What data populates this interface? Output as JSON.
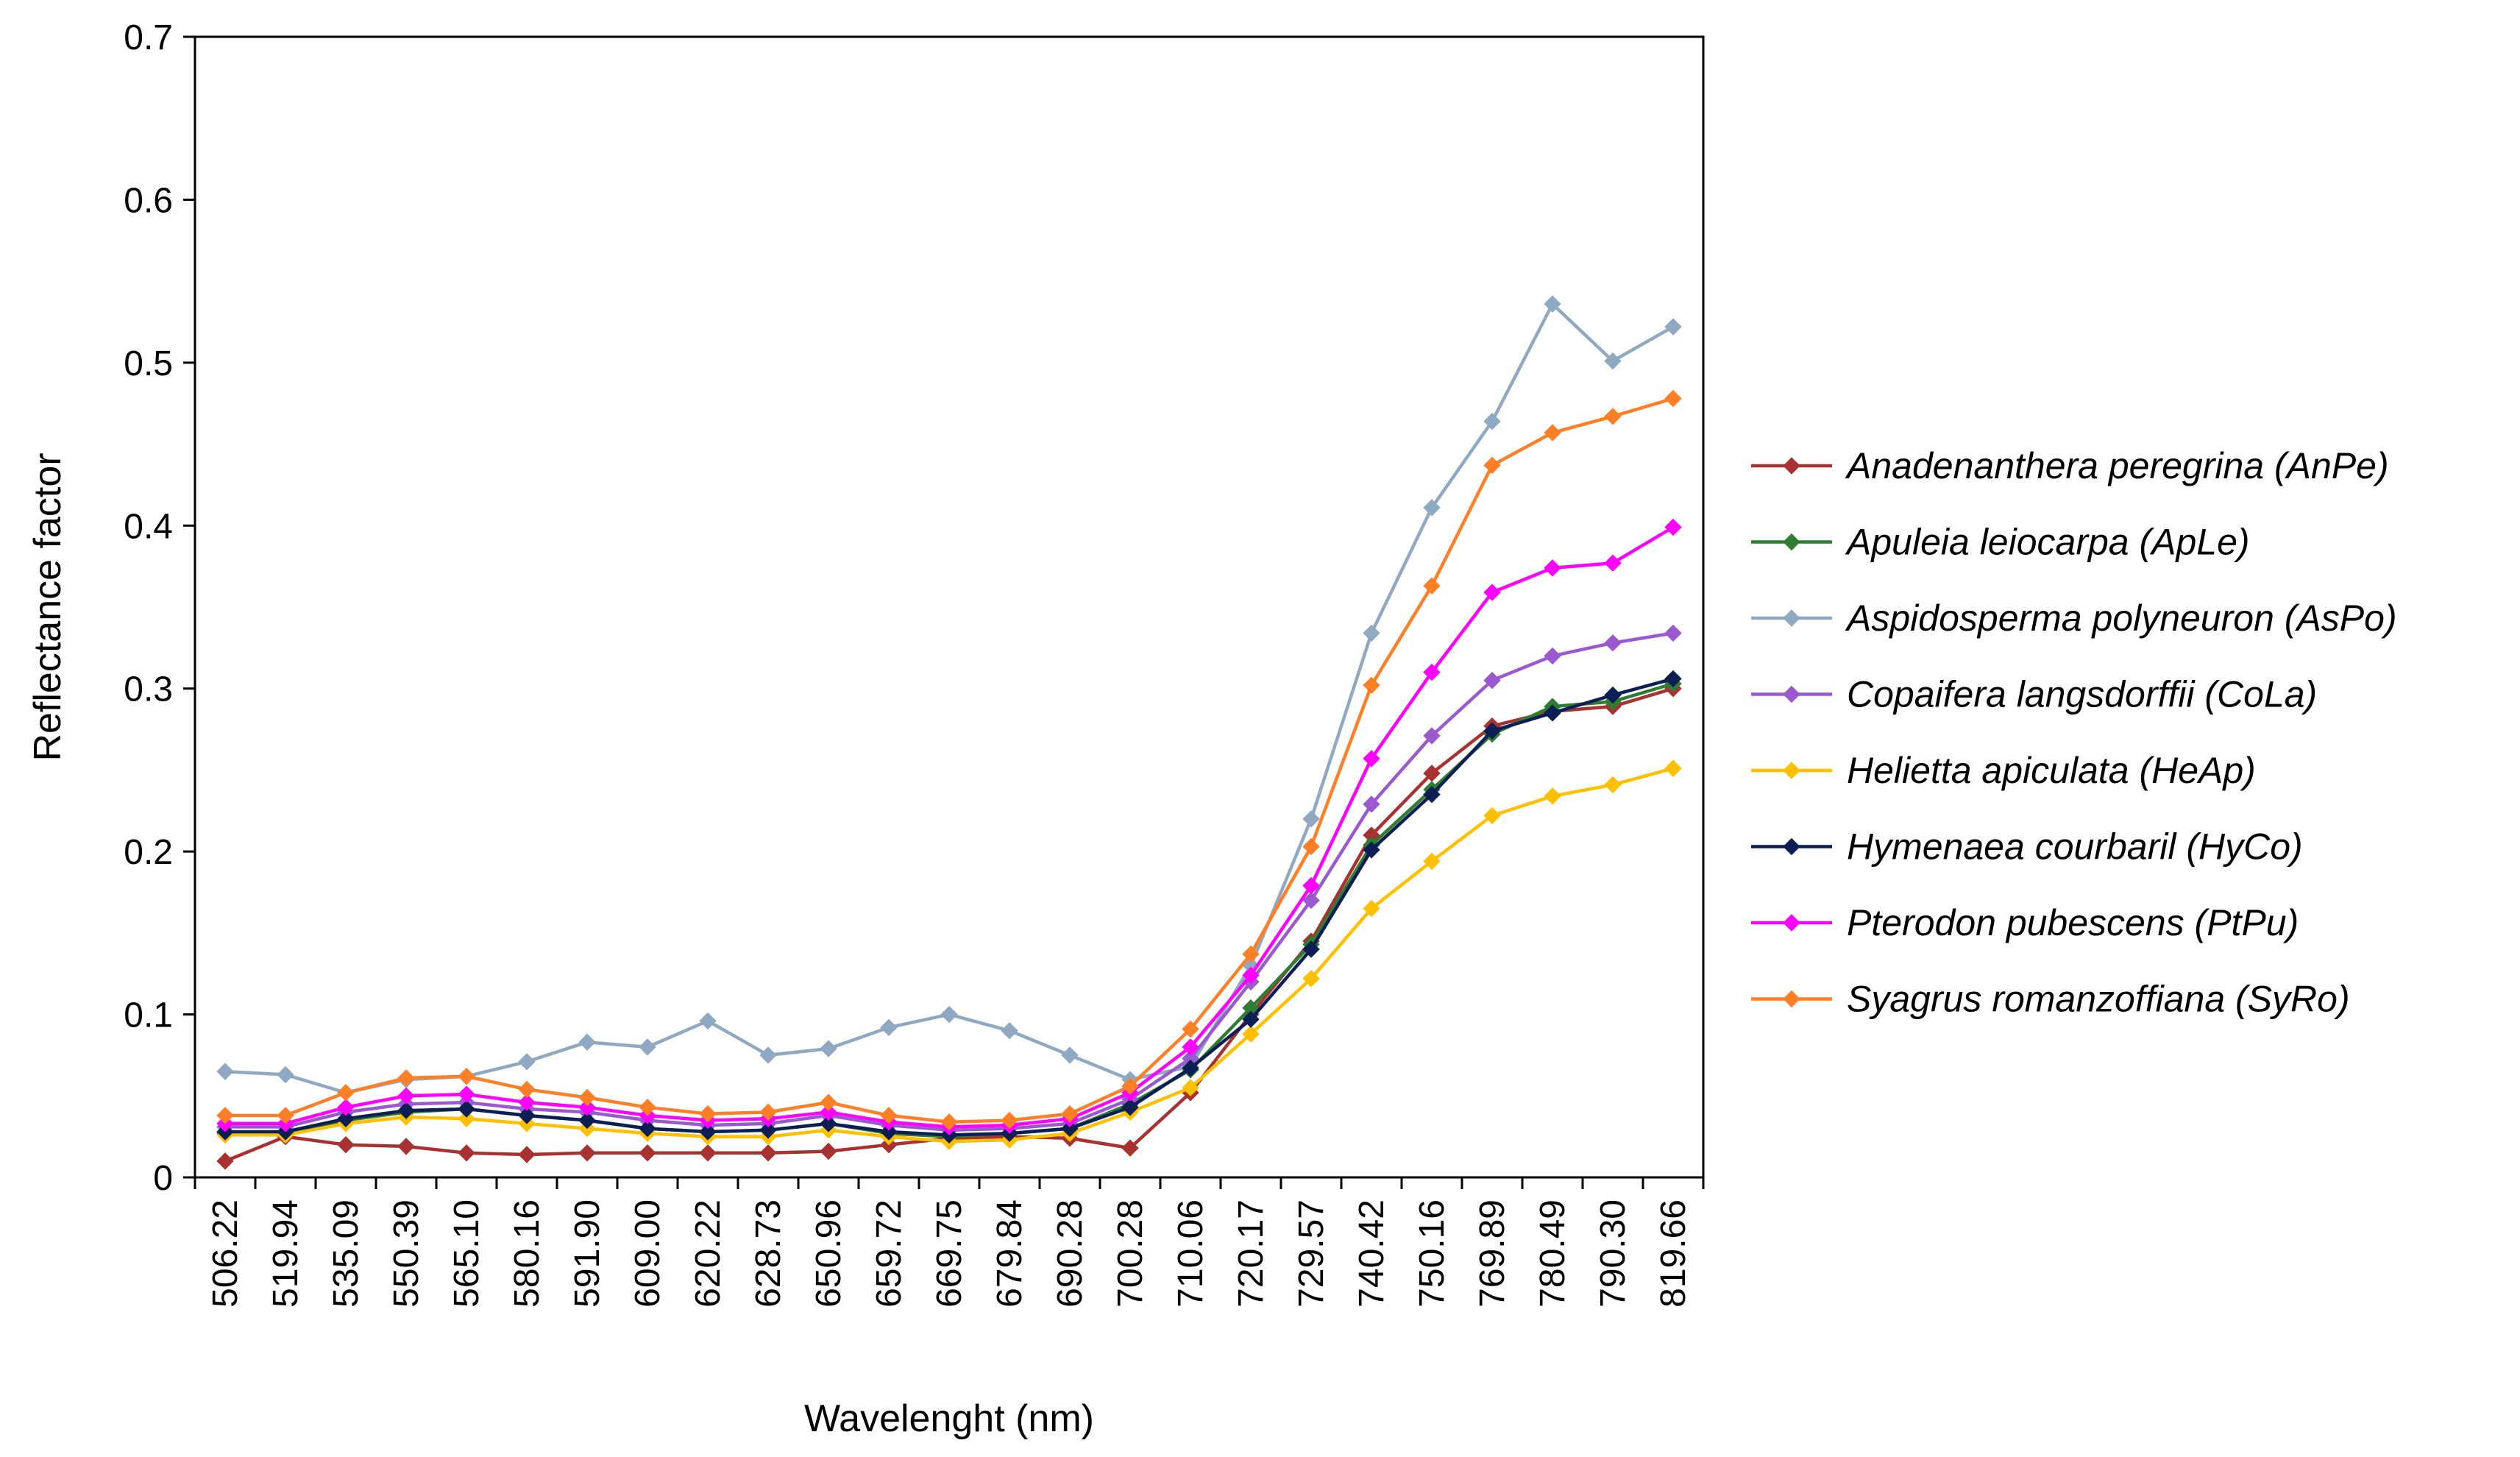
{
  "chart_data": {
    "type": "line",
    "title": "",
    "xlabel": "Wavelenght (nm)",
    "ylabel": "Reflectance factor",
    "ylim": [
      0,
      0.7
    ],
    "yticks": [
      0,
      0.1,
      0.2,
      0.3,
      0.4,
      0.5,
      0.6,
      0.7
    ],
    "ytick_labels": [
      "0",
      "0.1",
      "0.2",
      "0.3",
      "0.4",
      "0.5",
      "0.6",
      "0.7"
    ],
    "grid": false,
    "legend_position": "right",
    "categories": [
      "506.22",
      "519.94",
      "535.09",
      "550.39",
      "565.10",
      "580.16",
      "591.90",
      "609.00",
      "620.22",
      "628.73",
      "650.96",
      "659.72",
      "669.75",
      "679.84",
      "690.28",
      "700.28",
      "710.06",
      "720.17",
      "729.57",
      "740.42",
      "750.16",
      "769.89",
      "780.49",
      "790.30",
      "819.66"
    ],
    "series": [
      {
        "name": "Anadenanthera peregrina (AnPe)",
        "color": "#a83232",
        "values": [
          0.01,
          0.025,
          0.02,
          0.019,
          0.015,
          0.014,
          0.015,
          0.015,
          0.015,
          0.015,
          0.016,
          0.02,
          0.024,
          0.025,
          0.024,
          0.018,
          0.052,
          0.1,
          0.145,
          0.21,
          0.248,
          0.277,
          0.286,
          0.289,
          0.3
        ]
      },
      {
        "name": "Apuleia leiocarpa (ApLe)",
        "color": "#2e7d32",
        "values": [
          0.027,
          0.027,
          0.035,
          0.04,
          0.042,
          0.038,
          0.035,
          0.03,
          0.028,
          0.029,
          0.033,
          0.027,
          0.025,
          0.027,
          0.03,
          0.045,
          0.066,
          0.104,
          0.143,
          0.204,
          0.238,
          0.272,
          0.289,
          0.292,
          0.303
        ]
      },
      {
        "name": "Aspidosperma polyneuron (AsPo)",
        "color": "#8ea9c1",
        "values": [
          0.065,
          0.063,
          0.052,
          0.06,
          0.062,
          0.071,
          0.083,
          0.08,
          0.096,
          0.075,
          0.079,
          0.092,
          0.1,
          0.09,
          0.075,
          0.06,
          0.068,
          0.13,
          0.22,
          0.334,
          0.411,
          0.464,
          0.536,
          0.501,
          0.522
        ]
      },
      {
        "name": "Copaifera langsdorffii (CoLa)",
        "color": "#9b59d0",
        "values": [
          0.031,
          0.031,
          0.04,
          0.045,
          0.046,
          0.042,
          0.04,
          0.035,
          0.032,
          0.033,
          0.038,
          0.032,
          0.029,
          0.03,
          0.033,
          0.048,
          0.073,
          0.12,
          0.17,
          0.229,
          0.271,
          0.305,
          0.32,
          0.328,
          0.334
        ]
      },
      {
        "name": "Helietta apiculata (HeAp)",
        "color": "#ffc000",
        "values": [
          0.026,
          0.026,
          0.033,
          0.037,
          0.036,
          0.033,
          0.03,
          0.027,
          0.025,
          0.025,
          0.029,
          0.025,
          0.022,
          0.023,
          0.027,
          0.04,
          0.055,
          0.088,
          0.122,
          0.165,
          0.194,
          0.222,
          0.234,
          0.241,
          0.251
        ]
      },
      {
        "name": "Hymenaea courbaril (HyCo)",
        "color": "#0b1f55",
        "values": [
          0.028,
          0.028,
          0.036,
          0.041,
          0.042,
          0.038,
          0.035,
          0.03,
          0.028,
          0.029,
          0.033,
          0.028,
          0.026,
          0.027,
          0.03,
          0.043,
          0.067,
          0.097,
          0.14,
          0.201,
          0.235,
          0.274,
          0.285,
          0.296,
          0.306
        ]
      },
      {
        "name": "Pterodon pubescens (PtPu)",
        "color": "#ff00ff",
        "values": [
          0.033,
          0.033,
          0.043,
          0.05,
          0.051,
          0.046,
          0.043,
          0.038,
          0.035,
          0.036,
          0.04,
          0.034,
          0.031,
          0.032,
          0.036,
          0.052,
          0.08,
          0.124,
          0.179,
          0.257,
          0.31,
          0.359,
          0.374,
          0.377,
          0.399
        ]
      },
      {
        "name": "Syagrus romanzoffiana (SyRo)",
        "color": "#ff7f27",
        "values": [
          0.038,
          0.038,
          0.052,
          0.061,
          0.062,
          0.054,
          0.049,
          0.043,
          0.039,
          0.04,
          0.046,
          0.038,
          0.034,
          0.035,
          0.039,
          0.056,
          0.091,
          0.137,
          0.203,
          0.302,
          0.363,
          0.437,
          0.457,
          0.467,
          0.478
        ]
      }
    ]
  },
  "style": {
    "plot_border_color": "#000000",
    "axis_color": "#000000",
    "background": "#ffffff"
  }
}
